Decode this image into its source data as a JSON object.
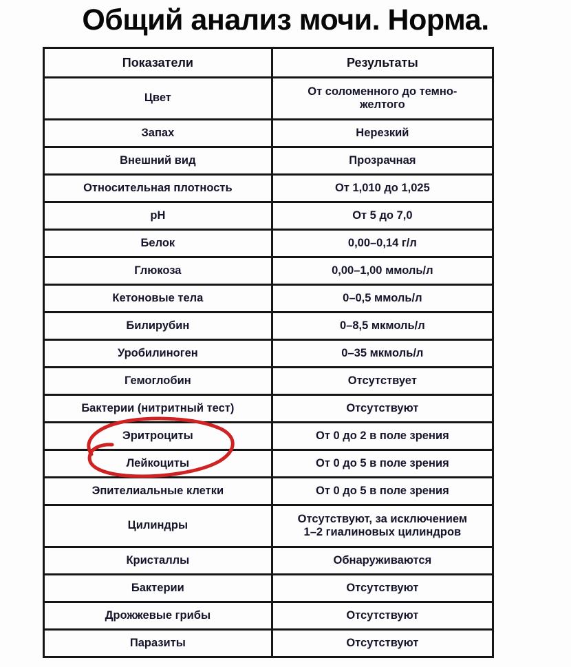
{
  "page": {
    "title": "Общий анализ мочи. Норма.",
    "background": "#fdfdfd"
  },
  "colors": {
    "title_text": "#070707",
    "table_text": "#14142a",
    "table_border": "#151515",
    "annotation_red": "#cf2222"
  },
  "table": {
    "columns": [
      "Показатели",
      "Результаты"
    ],
    "rows": [
      {
        "indicator": "Цвет",
        "result": "От соломенного до темно-\nжелтого"
      },
      {
        "indicator": "Запах",
        "result": "Нерезкий"
      },
      {
        "indicator": "Внешний вид",
        "result": "Прозрачная"
      },
      {
        "indicator": "Относительная плотность",
        "result": "От 1,010 до 1,025"
      },
      {
        "indicator": "pH",
        "result": "От 5 до 7,0"
      },
      {
        "indicator": "Белок",
        "result": "0,00–0,14 г/л"
      },
      {
        "indicator": "Глюкоза",
        "result": "0,00–1,00 ммоль/л"
      },
      {
        "indicator": "Кетоновые тела",
        "result": "0–0,5 ммоль/л"
      },
      {
        "indicator": "Билирубин",
        "result": "0–8,5 мкмоль/л"
      },
      {
        "indicator": "Уробилиноген",
        "result": "0–35 мкмоль/л"
      },
      {
        "indicator": "Гемоглобин",
        "result": "Отсутствует"
      },
      {
        "indicator": "Бактерии (нитритный тест)",
        "result": "Отсутствуют"
      },
      {
        "indicator": "Эритроциты",
        "result": "От 0 до 2 в поле зрения",
        "annotation": "red-circle"
      },
      {
        "indicator": "Лейкоциты",
        "result": "От 0 до 5 в поле зрения"
      },
      {
        "indicator": "Эпителиальные клетки",
        "result": "От 0 до 5 в поле зрения"
      },
      {
        "indicator": "Цилиндры",
        "result": "Отсутствуют, за исключением\n1–2 гиалиновых цилиндров"
      },
      {
        "indicator": "Кристаллы",
        "result": "Обнаруживаются"
      },
      {
        "indicator": "Бактерии",
        "result": "Отсутствуют"
      },
      {
        "indicator": "Дрожжевые грибы",
        "result": "Отсутствуют"
      },
      {
        "indicator": "Паразиты",
        "result": "Отсутствуют"
      }
    ]
  },
  "annotation": {
    "shape": "hand-drawn-ellipse",
    "around": "Эритроциты",
    "color": "#cf2222"
  }
}
